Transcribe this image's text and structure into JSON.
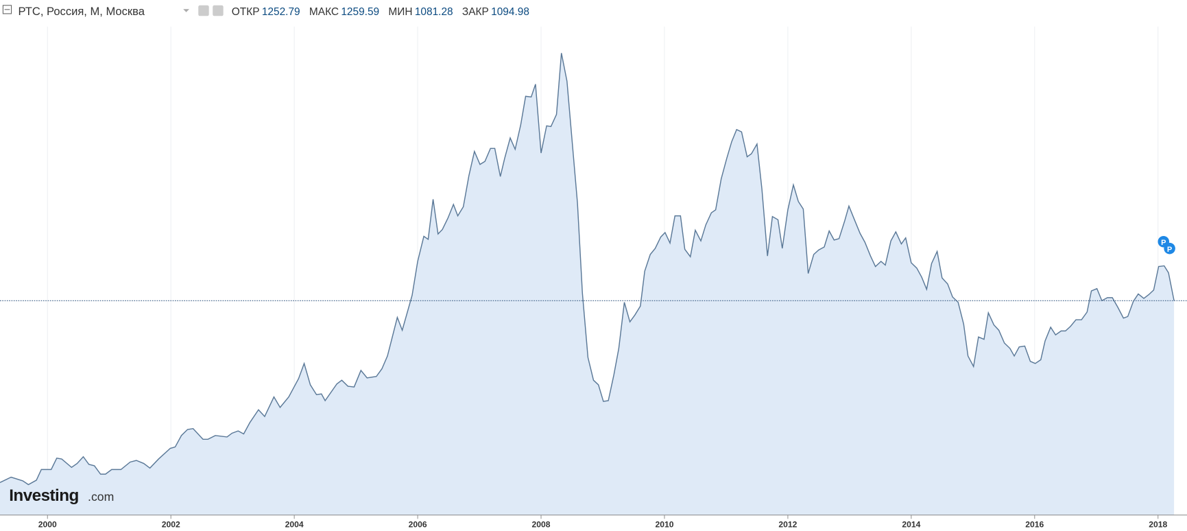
{
  "header": {
    "title": "РТС, Россия, М, Москва",
    "stats": [
      {
        "label": "ОТКР",
        "value": 1252.79
      },
      {
        "label": "МАКС",
        "value": 1259.59
      },
      {
        "label": "МИН",
        "value": 1081.28
      },
      {
        "label": "ЗАКР",
        "value": 1094.98
      }
    ]
  },
  "watermark": {
    "brand": "Investing",
    "suffix": ".com"
  },
  "chart_data": {
    "type": "area",
    "color": "#5a7897",
    "fill": "#dfeaf7",
    "grid": true,
    "xlim": [
      1999.23,
      2018.47
    ],
    "ylim": [
      -110,
      2636
    ],
    "xticks": [
      2000,
      2002,
      2004,
      2006,
      2008,
      2010,
      2012,
      2014,
      2016,
      2018
    ],
    "x": [
      1999.23,
      1999.41,
      1999.6,
      1999.69,
      1999.82,
      1999.9,
      2000.06,
      2000.15,
      2000.23,
      2000.39,
      2000.48,
      2000.58,
      2000.67,
      2000.76,
      2000.86,
      2000.94,
      2001.04,
      2001.19,
      2001.34,
      2001.44,
      2001.56,
      2001.66,
      2001.8,
      2001.99,
      2002.07,
      2002.17,
      2002.27,
      2002.36,
      2002.52,
      2002.6,
      2002.72,
      2002.91,
      2002.99,
      2003.09,
      2003.18,
      2003.28,
      2003.42,
      2003.52,
      2003.67,
      2003.77,
      2003.91,
      2004.07,
      2004.16,
      2004.26,
      2004.36,
      2004.44,
      2004.5,
      2004.69,
      2004.77,
      2004.87,
      2004.97,
      2005.08,
      2005.18,
      2005.33,
      2005.42,
      2005.51,
      2005.57,
      2005.67,
      2005.75,
      2005.91,
      2006.0,
      2006.1,
      2006.17,
      2006.25,
      2006.33,
      2006.4,
      2006.49,
      2006.58,
      2006.65,
      2006.74,
      2006.83,
      2006.92,
      2007.01,
      2007.09,
      2007.18,
      2007.25,
      2007.34,
      2007.41,
      2007.5,
      2007.58,
      2007.67,
      2007.75,
      2007.84,
      2007.91,
      2008.0,
      2008.09,
      2008.16,
      2008.25,
      2008.33,
      2008.42,
      2008.5,
      2008.59,
      2008.67,
      2008.76,
      2008.85,
      2008.93,
      2009.01,
      2009.09,
      2009.18,
      2009.26,
      2009.35,
      2009.44,
      2009.52,
      2009.61,
      2009.68,
      2009.77,
      2009.85,
      2009.94,
      2010.01,
      2010.09,
      2010.17,
      2010.26,
      2010.33,
      2010.42,
      2010.5,
      2010.59,
      2010.67,
      2010.76,
      2010.83,
      2010.92,
      2011.01,
      2011.09,
      2011.17,
      2011.25,
      2011.34,
      2011.41,
      2011.5,
      2011.58,
      2011.67,
      2011.75,
      2011.84,
      2011.91,
      2012.0,
      2012.09,
      2012.17,
      2012.25,
      2012.33,
      2012.42,
      2012.5,
      2012.59,
      2012.67,
      2012.75,
      2012.83,
      2012.92,
      2012.99,
      2013.08,
      2013.17,
      2013.25,
      2013.34,
      2013.42,
      2013.51,
      2013.58,
      2013.67,
      2013.75,
      2013.84,
      2013.91,
      2014.0,
      2014.09,
      2014.17,
      2014.25,
      2014.33,
      2014.42,
      2014.5,
      2014.59,
      2014.67,
      2014.76,
      2014.85,
      2014.92,
      2015.01,
      2015.09,
      2015.18,
      2015.25,
      2015.34,
      2015.42,
      2015.51,
      2015.6,
      2015.67,
      2015.75,
      2015.84,
      2015.93,
      2016.01,
      2016.1,
      2016.17,
      2016.26,
      2016.34,
      2016.43,
      2016.5,
      2016.58,
      2016.67,
      2016.76,
      2016.85,
      2016.92,
      2017.01,
      2017.09,
      2017.18,
      2017.26,
      2017.35,
      2017.44,
      2017.51,
      2017.6,
      2017.68,
      2017.77,
      2017.85,
      2017.93,
      2018.01,
      2018.1,
      2018.17,
      2018.26
    ],
    "values": [
      73,
      103,
      82,
      61,
      86,
      146,
      146,
      210,
      205,
      158,
      180,
      218,
      175,
      167,
      120,
      120,
      146,
      146,
      188,
      197,
      180,
      154,
      205,
      265,
      273,
      337,
      371,
      376,
      316,
      316,
      337,
      329,
      350,
      363,
      346,
      410,
      482,
      444,
      554,
      495,
      554,
      657,
      742,
      622,
      567,
      571,
      533,
      627,
      648,
      614,
      610,
      703,
      661,
      669,
      712,
      784,
      865,
      1001,
      929,
      1125,
      1316,
      1457,
      1440,
      1665,
      1470,
      1495,
      1559,
      1636,
      1572,
      1623,
      1797,
      1934,
      1861,
      1878,
      1951,
      1951,
      1793,
      1895,
      2010,
      1946,
      2083,
      2244,
      2240,
      2312,
      1925,
      2078,
      2074,
      2142,
      2487,
      2329,
      2006,
      1644,
      1138,
      776,
      648,
      622,
      529,
      533,
      678,
      827,
      1086,
      976,
      1014,
      1065,
      1261,
      1355,
      1389,
      1453,
      1478,
      1419,
      1572,
      1572,
      1384,
      1342,
      1491,
      1431,
      1521,
      1589,
      1606,
      1780,
      1895,
      1989,
      2057,
      2044,
      1904,
      1921,
      1976,
      1721,
      1346,
      1568,
      1550,
      1389,
      1606,
      1746,
      1653,
      1610,
      1248,
      1355,
      1380,
      1397,
      1487,
      1436,
      1444,
      1542,
      1627,
      1550,
      1474,
      1423,
      1346,
      1287,
      1316,
      1295,
      1431,
      1482,
      1414,
      1448,
      1308,
      1278,
      1227,
      1159,
      1304,
      1372,
      1223,
      1189,
      1116,
      1086,
      963,
      784,
      725,
      891,
      878,
      1027,
      959,
      929,
      857,
      827,
      784,
      835,
      840,
      754,
      742,
      763,
      869,
      946,
      903,
      925,
      925,
      950,
      988,
      988,
      1031,
      1150,
      1163,
      1095,
      1112,
      1112,
      1057,
      997,
      1006,
      1091,
      1133,
      1108,
      1129,
      1155,
      1287,
      1291,
      1252,
      1095
    ]
  }
}
